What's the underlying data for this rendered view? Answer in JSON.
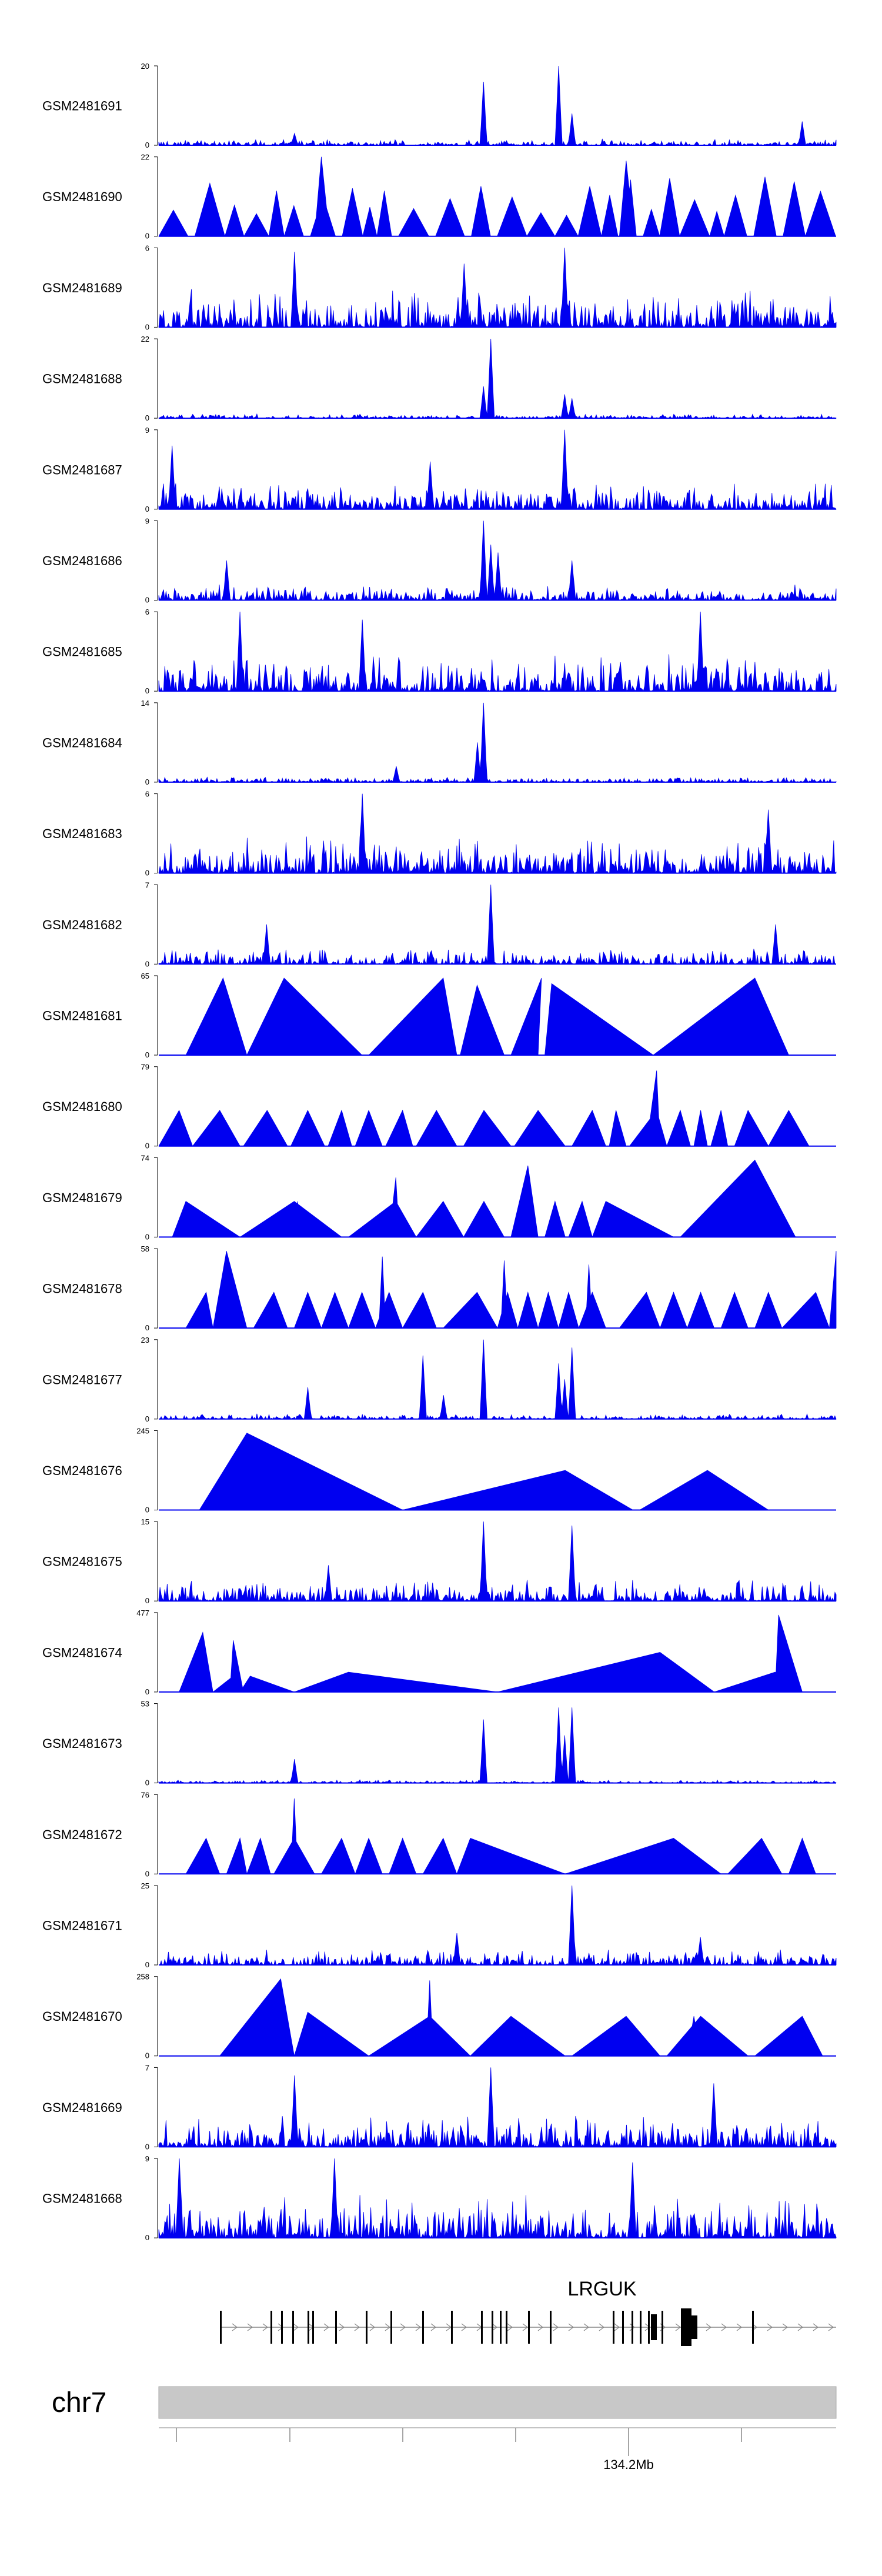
{
  "chart_data": {
    "type": "area",
    "title": "",
    "series_color": "#0000f0",
    "tracks": [
      {
        "name": "GSM2481691",
        "ymax": "20",
        "ymin": "0",
        "style": "noise",
        "base": 0.06,
        "seed": 91,
        "peaks": [
          [
            0.48,
            0.8
          ],
          [
            0.59,
            1.0
          ],
          [
            0.61,
            0.4
          ],
          [
            0.2,
            0.15
          ],
          [
            0.95,
            0.3
          ]
        ]
      },
      {
        "name": "GSM2481690",
        "ymax": "22",
        "ymin": "0",
        "style": "dense-tri",
        "base": 0.5,
        "seed": 90,
        "peaks": [
          [
            0.24,
            1.0
          ],
          [
            0.69,
            0.95
          ]
        ]
      },
      {
        "name": "GSM2481689",
        "ymax": "6",
        "ymin": "0",
        "style": "noise",
        "base": 0.35,
        "seed": 89,
        "peaks": [
          [
            0.2,
            0.95
          ],
          [
            0.45,
            0.8
          ],
          [
            0.6,
            1.0
          ]
        ]
      },
      {
        "name": "GSM2481688",
        "ymax": "22",
        "ymin": "0",
        "style": "noise",
        "base": 0.04,
        "seed": 88,
        "peaks": [
          [
            0.49,
            1.0
          ],
          [
            0.48,
            0.4
          ],
          [
            0.6,
            0.3
          ],
          [
            0.61,
            0.25
          ]
        ]
      },
      {
        "name": "GSM2481687",
        "ymax": "9",
        "ymin": "0",
        "style": "noise",
        "base": 0.25,
        "seed": 87,
        "peaks": [
          [
            0.02,
            0.8
          ],
          [
            0.6,
            1.0
          ],
          [
            0.4,
            0.6
          ]
        ]
      },
      {
        "name": "GSM2481686",
        "ymax": "9",
        "ymin": "0",
        "style": "noise",
        "base": 0.15,
        "seed": 86,
        "peaks": [
          [
            0.48,
            1.0
          ],
          [
            0.49,
            0.7
          ],
          [
            0.5,
            0.6
          ],
          [
            0.61,
            0.5
          ],
          [
            0.1,
            0.5
          ]
        ]
      },
      {
        "name": "GSM2481685",
        "ymax": "6",
        "ymin": "0",
        "style": "noise",
        "base": 0.35,
        "seed": 85,
        "peaks": [
          [
            0.12,
            1.0
          ],
          [
            0.8,
            1.0
          ],
          [
            0.3,
            0.9
          ]
        ]
      },
      {
        "name": "GSM2481684",
        "ymax": "14",
        "ymin": "0",
        "style": "noise",
        "base": 0.05,
        "seed": 84,
        "peaks": [
          [
            0.48,
            1.0
          ],
          [
            0.47,
            0.5
          ],
          [
            0.35,
            0.2
          ]
        ]
      },
      {
        "name": "GSM2481683",
        "ymax": "6",
        "ymin": "0",
        "style": "noise",
        "base": 0.35,
        "seed": 83,
        "peaks": [
          [
            0.3,
            1.0
          ],
          [
            0.9,
            0.8
          ]
        ]
      },
      {
        "name": "GSM2481682",
        "ymax": "7",
        "ymin": "0",
        "style": "noise",
        "base": 0.15,
        "seed": 82,
        "peaks": [
          [
            0.49,
            1.0
          ],
          [
            0.16,
            0.5
          ],
          [
            0.91,
            0.5
          ]
        ]
      },
      {
        "name": "GSM2481681",
        "ymax": "65",
        "ymin": "0",
        "style": "triangles",
        "tris": [
          [
            0.04,
            0.095,
            0.13,
            0.97
          ],
          [
            0.13,
            0.185,
            0.3,
            0.97
          ],
          [
            0.31,
            0.42,
            0.44,
            0.97
          ],
          [
            0.445,
            0.47,
            0.51,
            0.88
          ],
          [
            0.52,
            0.565,
            0.56,
            0.97
          ],
          [
            0.57,
            0.58,
            0.73,
            0.9
          ],
          [
            0.73,
            0.88,
            0.93,
            0.97
          ]
        ]
      },
      {
        "name": "GSM2481680",
        "ymax": "79",
        "ymin": "0",
        "style": "triangles",
        "tris": [
          [
            0.0,
            0.03,
            0.05,
            0.45
          ],
          [
            0.05,
            0.09,
            0.12,
            0.45
          ],
          [
            0.125,
            0.16,
            0.19,
            0.45
          ],
          [
            0.195,
            0.22,
            0.245,
            0.45
          ],
          [
            0.25,
            0.27,
            0.285,
            0.45
          ],
          [
            0.29,
            0.31,
            0.33,
            0.45
          ],
          [
            0.335,
            0.36,
            0.375,
            0.45
          ],
          [
            0.38,
            0.41,
            0.44,
            0.45
          ],
          [
            0.45,
            0.48,
            0.52,
            0.45
          ],
          [
            0.525,
            0.56,
            0.6,
            0.45
          ],
          [
            0.61,
            0.64,
            0.66,
            0.45
          ],
          [
            0.665,
            0.675,
            0.69,
            0.45
          ],
          [
            0.695,
            0.735,
            0.75,
            0.45
          ],
          [
            0.75,
            0.77,
            0.785,
            0.45
          ],
          [
            0.79,
            0.8,
            0.81,
            0.45
          ],
          [
            0.815,
            0.83,
            0.84,
            0.45
          ],
          [
            0.85,
            0.87,
            0.9,
            0.45
          ],
          [
            0.9,
            0.93,
            0.96,
            0.45
          ],
          [
            0.72,
            0.735,
            0.74,
            0.95
          ]
        ]
      },
      {
        "name": "GSM2481679",
        "ymax": "74",
        "ymin": "0",
        "style": "triangles",
        "tris": [
          [
            0.02,
            0.04,
            0.12,
            0.45
          ],
          [
            0.12,
            0.2,
            0.27,
            0.45
          ],
          [
            0.28,
            0.35,
            0.38,
            0.45
          ],
          [
            0.38,
            0.42,
            0.45,
            0.45
          ],
          [
            0.45,
            0.48,
            0.51,
            0.45
          ],
          [
            0.52,
            0.545,
            0.56,
            0.9
          ],
          [
            0.57,
            0.585,
            0.6,
            0.45
          ],
          [
            0.605,
            0.625,
            0.64,
            0.45
          ],
          [
            0.64,
            0.66,
            0.76,
            0.45
          ],
          [
            0.77,
            0.88,
            0.94,
            0.97
          ],
          [
            0.34,
            0.35,
            0.355,
            0.75
          ],
          [
            0.2,
            0.205,
            0.21,
            0.45
          ]
        ]
      },
      {
        "name": "GSM2481678",
        "ymax": "58",
        "ymin": "0",
        "style": "triangles",
        "tris": [
          [
            0.04,
            0.07,
            0.08,
            0.45
          ],
          [
            0.08,
            0.1,
            0.13,
            0.97
          ],
          [
            0.14,
            0.17,
            0.19,
            0.45
          ],
          [
            0.2,
            0.22,
            0.24,
            0.45
          ],
          [
            0.24,
            0.26,
            0.28,
            0.45
          ],
          [
            0.28,
            0.3,
            0.32,
            0.45
          ],
          [
            0.32,
            0.34,
            0.36,
            0.45
          ],
          [
            0.36,
            0.39,
            0.41,
            0.45
          ],
          [
            0.42,
            0.47,
            0.5,
            0.45
          ],
          [
            0.5,
            0.515,
            0.53,
            0.45
          ],
          [
            0.53,
            0.545,
            0.56,
            0.45
          ],
          [
            0.56,
            0.575,
            0.59,
            0.45
          ],
          [
            0.59,
            0.605,
            0.62,
            0.45
          ],
          [
            0.62,
            0.64,
            0.66,
            0.45
          ],
          [
            0.68,
            0.72,
            0.74,
            0.45
          ],
          [
            0.74,
            0.76,
            0.78,
            0.45
          ],
          [
            0.78,
            0.8,
            0.82,
            0.45
          ],
          [
            0.83,
            0.85,
            0.87,
            0.45
          ],
          [
            0.88,
            0.9,
            0.92,
            0.45
          ],
          [
            0.92,
            0.97,
            0.99,
            0.45
          ],
          [
            0.99,
            1.0,
            1.0,
            0.97
          ],
          [
            0.325,
            0.33,
            0.335,
            0.9
          ],
          [
            0.505,
            0.51,
            0.515,
            0.85
          ],
          [
            0.63,
            0.635,
            0.64,
            0.8
          ]
        ]
      },
      {
        "name": "GSM2481677",
        "ymax": "23",
        "ymin": "0",
        "style": "noise",
        "base": 0.05,
        "seed": 77,
        "peaks": [
          [
            0.39,
            0.8
          ],
          [
            0.48,
            1.0
          ],
          [
            0.59,
            0.7
          ],
          [
            0.61,
            0.9
          ],
          [
            0.6,
            0.5
          ],
          [
            0.22,
            0.4
          ],
          [
            0.42,
            0.3
          ]
        ]
      },
      {
        "name": "GSM2481676",
        "ymax": "245",
        "ymin": "0",
        "style": "triangles",
        "tris": [
          [
            0.06,
            0.13,
            0.36,
            0.97
          ],
          [
            0.36,
            0.6,
            0.7,
            0.5
          ],
          [
            0.71,
            0.81,
            0.9,
            0.5
          ]
        ]
      },
      {
        "name": "GSM2481675",
        "ymax": "15",
        "ymin": "0",
        "style": "noise",
        "base": 0.2,
        "seed": 75,
        "peaks": [
          [
            0.48,
            1.0
          ],
          [
            0.61,
            0.95
          ],
          [
            0.25,
            0.45
          ]
        ]
      },
      {
        "name": "GSM2481674",
        "ymax": "477",
        "ymin": "0",
        "style": "triangles",
        "tris": [
          [
            0.03,
            0.065,
            0.08,
            0.75
          ],
          [
            0.08,
            0.11,
            0.12,
            0.2
          ],
          [
            0.105,
            0.11,
            0.125,
            0.65
          ],
          [
            0.12,
            0.135,
            0.2,
            0.2
          ],
          [
            0.2,
            0.28,
            0.5,
            0.25
          ],
          [
            0.5,
            0.74,
            0.82,
            0.5
          ],
          [
            0.82,
            0.91,
            0.95,
            0.25
          ],
          [
            0.91,
            0.915,
            0.95,
            0.97
          ]
        ]
      },
      {
        "name": "GSM2481673",
        "ymax": "53",
        "ymin": "0",
        "style": "noise",
        "base": 0.03,
        "seed": 73,
        "peaks": [
          [
            0.48,
            0.8
          ],
          [
            0.59,
            0.95
          ],
          [
            0.61,
            0.95
          ],
          [
            0.6,
            0.6
          ],
          [
            0.2,
            0.3
          ]
        ]
      },
      {
        "name": "GSM2481672",
        "ymax": "76",
        "ymin": "0",
        "style": "triangles",
        "tris": [
          [
            0.04,
            0.07,
            0.09,
            0.45
          ],
          [
            0.1,
            0.12,
            0.13,
            0.45
          ],
          [
            0.13,
            0.15,
            0.165,
            0.45
          ],
          [
            0.17,
            0.2,
            0.23,
            0.45
          ],
          [
            0.24,
            0.27,
            0.29,
            0.45
          ],
          [
            0.29,
            0.31,
            0.33,
            0.45
          ],
          [
            0.34,
            0.36,
            0.38,
            0.45
          ],
          [
            0.39,
            0.42,
            0.44,
            0.45
          ],
          [
            0.44,
            0.46,
            0.6,
            0.45
          ],
          [
            0.6,
            0.76,
            0.83,
            0.45
          ],
          [
            0.84,
            0.89,
            0.92,
            0.45
          ],
          [
            0.93,
            0.95,
            0.97,
            0.45
          ],
          [
            0.195,
            0.2,
            0.205,
            0.95
          ]
        ]
      },
      {
        "name": "GSM2481671",
        "ymax": "25",
        "ymin": "0",
        "style": "noise",
        "base": 0.15,
        "seed": 71,
        "peaks": [
          [
            0.61,
            1.0
          ],
          [
            0.44,
            0.4
          ],
          [
            0.8,
            0.35
          ]
        ]
      },
      {
        "name": "GSM2481670",
        "ymax": "258",
        "ymin": "0",
        "style": "triangles",
        "tris": [
          [
            0.09,
            0.18,
            0.2,
            0.97
          ],
          [
            0.2,
            0.22,
            0.31,
            0.55
          ],
          [
            0.31,
            0.4,
            0.46,
            0.5
          ],
          [
            0.46,
            0.52,
            0.6,
            0.5
          ],
          [
            0.61,
            0.69,
            0.74,
            0.5
          ],
          [
            0.75,
            0.8,
            0.87,
            0.5
          ],
          [
            0.88,
            0.95,
            0.98,
            0.5
          ],
          [
            0.395,
            0.4,
            0.405,
            0.95
          ],
          [
            0.78,
            0.79,
            0.8,
            0.5
          ]
        ]
      },
      {
        "name": "GSM2481669",
        "ymax": "7",
        "ymin": "0",
        "style": "noise",
        "base": 0.3,
        "seed": 69,
        "peaks": [
          [
            0.49,
            1.0
          ],
          [
            0.2,
            0.9
          ],
          [
            0.82,
            0.8
          ]
        ]
      },
      {
        "name": "GSM2481668",
        "ymax": "9",
        "ymin": "0",
        "style": "noise",
        "base": 0.4,
        "seed": 68,
        "peaks": [
          [
            0.03,
            1.0
          ],
          [
            0.26,
            1.0
          ],
          [
            0.7,
            0.95
          ]
        ]
      }
    ],
    "gene": {
      "name": "LRGUK",
      "strand": "+"
    },
    "chromosome": "chr7",
    "axis": {
      "tick_label": "134.2Mb",
      "tick_count": 6,
      "labeled_tick_index": 4
    }
  }
}
